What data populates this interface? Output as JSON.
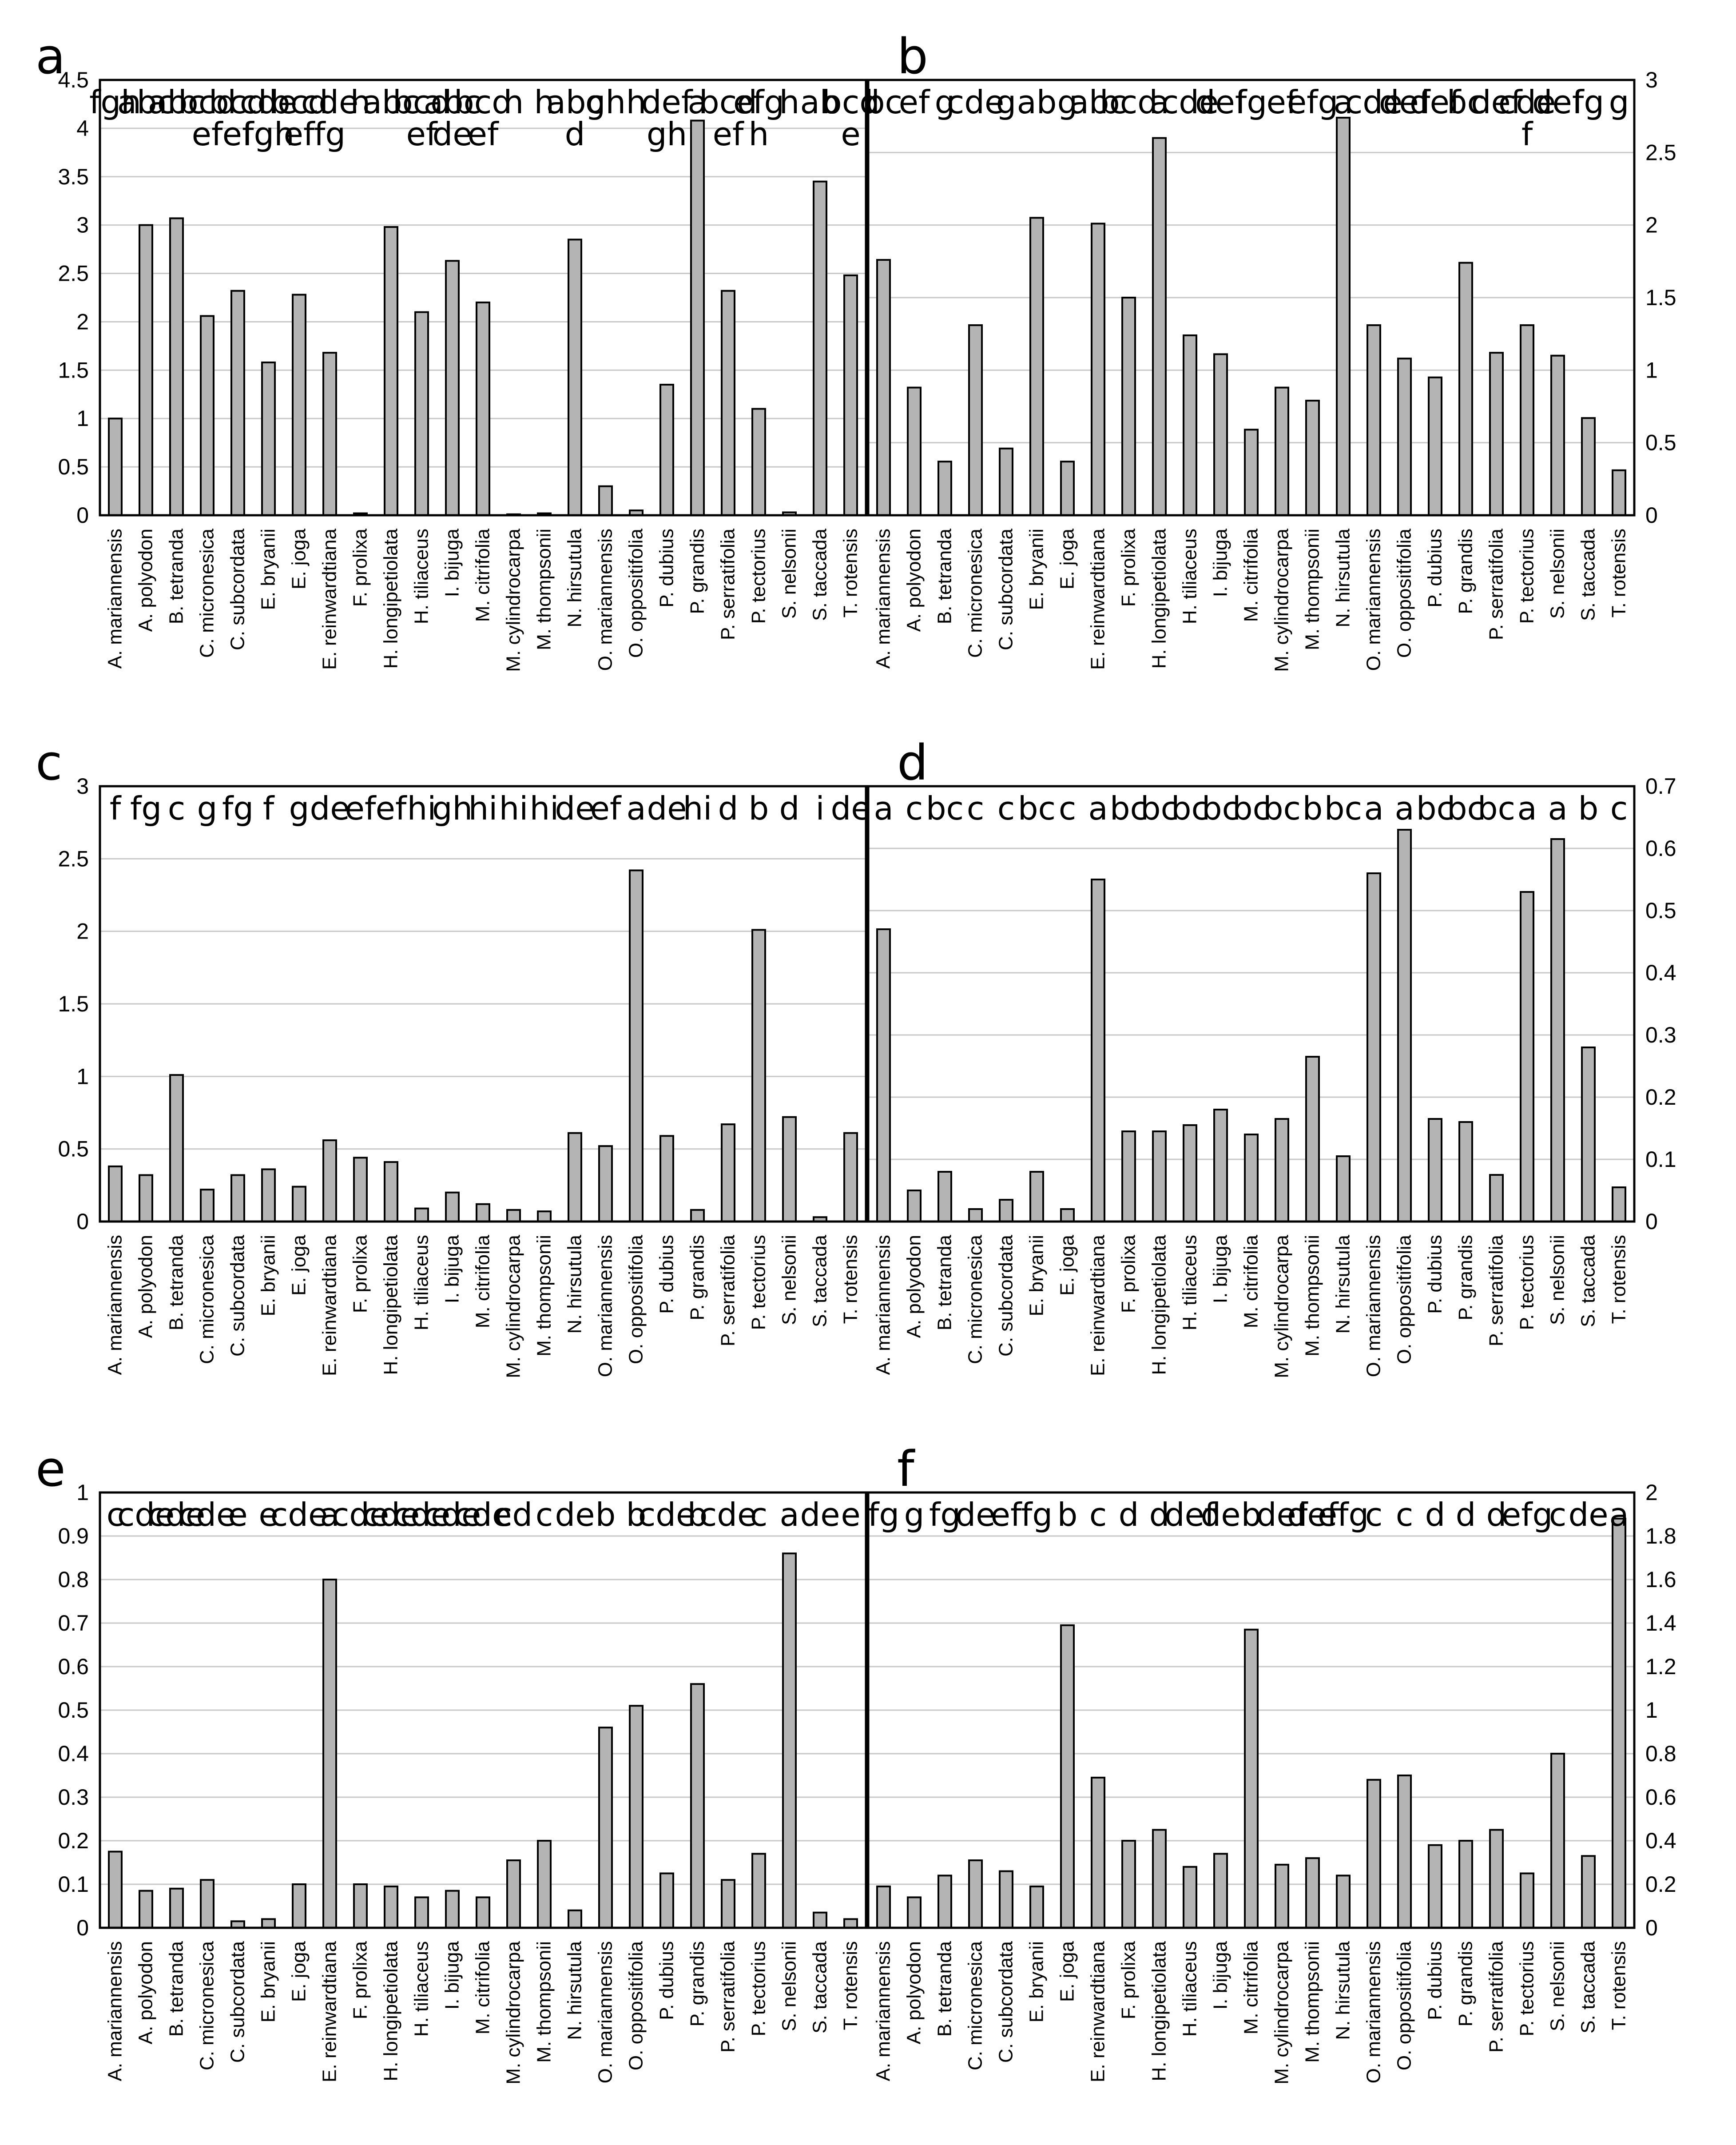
{
  "chart_data": [
    {
      "type": "bar",
      "panel": "a",
      "ylim": [
        0,
        4.5
      ],
      "yticks": [
        "0",
        "0.5",
        "1",
        "1.5",
        "2",
        "2.5",
        "3",
        "3.5",
        "4",
        "4.5"
      ],
      "categories": [
        "A. mariannensis",
        "A. polyodon",
        "B. tetranda",
        "C. micronesica",
        "C. subcordata",
        "E. bryanii",
        "E. joga",
        "E. reinwardtiana",
        "F. prolixa",
        "H. longipetiolata",
        "H. tiliaceus",
        "I. bijuga",
        "M. citrifolia",
        "M. cylindrocarpa",
        "M. thompsonii",
        "N. hirsutula",
        "O. mariannensis",
        "O. oppositifolia",
        "P. dubius",
        "P. grandis",
        "P. serratifolia",
        "P. tectorius",
        "S. nelsonii",
        "S. taccada",
        "T. rotensis"
      ],
      "values": [
        1.0,
        3.0,
        3.07,
        2.06,
        2.32,
        1.58,
        2.28,
        1.68,
        0.02,
        2.98,
        2.1,
        2.63,
        2.2,
        0.01,
        0.02,
        2.85,
        0.3,
        0.05,
        1.35,
        4.08,
        2.32,
        1.1,
        0.03,
        3.45,
        2.48
      ],
      "sig": [
        "fgh",
        "abc",
        "abc",
        "bcdef",
        "bcdef",
        "cdefgh",
        "bcdef",
        "cdefg",
        "h",
        "abc",
        "bcdef",
        "abcde",
        "bcdef",
        "h",
        "h",
        "abcd",
        "gh",
        "h",
        "defgh",
        "a",
        "bcdef",
        "efgh",
        "h",
        "ab",
        "bcde"
      ],
      "grid": true
    },
    {
      "type": "bar",
      "panel": "b",
      "ylim": [
        0,
        3
      ],
      "yticks": [
        "0",
        "0.5",
        "1",
        "1.5",
        "2",
        "2.5",
        "3"
      ],
      "categories": [
        "A. mariannensis",
        "A. polyodon",
        "B. tetranda",
        "C. micronesica",
        "C. subcordata",
        "E. bryanii",
        "E. joga",
        "E. reinwardtiana",
        "F. prolixa",
        "H. longipetiolata",
        "H. tiliaceus",
        "I. bijuga",
        "M. citrifolia",
        "M. cylindrocarpa",
        "M. thompsonii",
        "N. hirsutula",
        "O. mariannensis",
        "O. oppositifolia",
        "P. dubius",
        "P. grandis",
        "P. serratifolia",
        "P. tectorius",
        "S. nelsonii",
        "S. taccada",
        "T. rotensis"
      ],
      "values": [
        1.76,
        0.88,
        0.37,
        1.31,
        0.46,
        2.05,
        0.37,
        2.01,
        1.5,
        2.6,
        1.24,
        1.11,
        0.59,
        0.88,
        0.79,
        2.74,
        1.31,
        1.08,
        0.95,
        1.74,
        1.12,
        1.31,
        1.1,
        0.67,
        0.31
      ],
      "sig": [
        "bc",
        "ef",
        "g",
        "cde",
        "g",
        "ab",
        "g",
        "abc",
        "bcd",
        "a",
        "cde",
        "def",
        "fg",
        "ef",
        "efg",
        "a",
        "cde",
        "def",
        "def",
        "bc",
        "def",
        "cdef",
        "def",
        "fg",
        "g"
      ],
      "grid": true
    },
    {
      "type": "bar",
      "panel": "c",
      "ylim": [
        0,
        3
      ],
      "yticks": [
        "0",
        "0.5",
        "1",
        "1.5",
        "2",
        "2.5",
        "3"
      ],
      "categories": [
        "A. mariannensis",
        "A. polyodon",
        "B. tetranda",
        "C. micronesica",
        "C. subcordata",
        "E. bryanii",
        "E. joga",
        "E. reinwardtiana",
        "F. prolixa",
        "H. longipetiolata",
        "H. tiliaceus",
        "I. bijuga",
        "M. citrifolia",
        "M. cylindrocarpa",
        "M. thompsonii",
        "N. hirsutula",
        "O. mariannensis",
        "O. oppositifolia",
        "P. dubius",
        "P. grandis",
        "P. serratifolia",
        "P. tectorius",
        "S. nelsonii",
        "S. taccada",
        "T. rotensis"
      ],
      "values": [
        0.38,
        0.32,
        1.01,
        0.22,
        0.32,
        0.36,
        0.24,
        0.56,
        0.44,
        0.41,
        0.09,
        0.2,
        0.12,
        0.08,
        0.07,
        0.61,
        0.52,
        2.42,
        0.59,
        0.08,
        0.67,
        2.01,
        0.72,
        0.03,
        0.61
      ],
      "sig": [
        "f",
        "fg",
        "c",
        "g",
        "fg",
        "f",
        "g",
        "de",
        "ef",
        "ef",
        "hi",
        "gh",
        "hi",
        "hi",
        "hi",
        "de",
        "ef",
        "a",
        "de",
        "hi",
        "d",
        "b",
        "d",
        "i",
        "de"
      ],
      "grid": true
    },
    {
      "type": "bar",
      "panel": "d",
      "ylim": [
        0,
        0.7
      ],
      "yticks": [
        "0",
        "0.1",
        "0.2",
        "0.3",
        "0.4",
        "0.5",
        "0.6",
        "0.7"
      ],
      "categories": [
        "A. mariannensis",
        "A. polyodon",
        "B. tetranda",
        "C. micronesica",
        "C. subcordata",
        "E. bryanii",
        "E. joga",
        "E. reinwardtiana",
        "F. prolixa",
        "H. longipetiolata",
        "H. tiliaceus",
        "I. bijuga",
        "M. citrifolia",
        "M. cylindrocarpa",
        "M. thompsonii",
        "N. hirsutula",
        "O. mariannensis",
        "O. oppositifolia",
        "P. dubius",
        "P. grandis",
        "P. serratifolia",
        "P. tectorius",
        "S. nelsonii",
        "S. taccada",
        "T. rotensis"
      ],
      "values": [
        0.47,
        0.05,
        0.08,
        0.02,
        0.035,
        0.08,
        0.02,
        0.55,
        0.145,
        0.145,
        0.155,
        0.18,
        0.14,
        0.165,
        0.265,
        0.105,
        0.56,
        0.63,
        0.165,
        0.16,
        0.075,
        0.53,
        0.615,
        0.28,
        0.055
      ],
      "sig": [
        "a",
        "c",
        "bc",
        "c",
        "c",
        "bc",
        "c",
        "a",
        "bc",
        "bc",
        "bc",
        "bc",
        "bc",
        "bc",
        "b",
        "bc",
        "a",
        "a",
        "bc",
        "bc",
        "bc",
        "a",
        "a",
        "b",
        "c"
      ],
      "grid": true
    },
    {
      "type": "bar",
      "panel": "e",
      "ylim": [
        0,
        1
      ],
      "yticks": [
        "0",
        "0.1",
        "0.2",
        "0.3",
        "0.4",
        "0.5",
        "0.6",
        "0.7",
        "0.8",
        "0.9",
        "1"
      ],
      "categories": [
        "A. mariannensis",
        "A. polyodon",
        "B. tetranda",
        "C. micronesica",
        "C. subcordata",
        "E. bryanii",
        "E. joga",
        "E. reinwardtiana",
        "F. prolixa",
        "H. longipetiolata",
        "H. tiliaceus",
        "I. bijuga",
        "M. citrifolia",
        "M. cylindrocarpa",
        "M. thompsonii",
        "N. hirsutula",
        "O. mariannensis",
        "O. oppositifolia",
        "P. dubius",
        "P. grandis",
        "P. serratifolia",
        "P. tectorius",
        "S. nelsonii",
        "S. taccada",
        "T. rotensis"
      ],
      "values": [
        0.175,
        0.085,
        0.09,
        0.11,
        0.015,
        0.02,
        0.1,
        0.8,
        0.1,
        0.095,
        0.07,
        0.085,
        0.07,
        0.155,
        0.2,
        0.04,
        0.46,
        0.51,
        0.125,
        0.56,
        0.11,
        0.17,
        0.86,
        0.035,
        0.02
      ],
      "sig": [
        "c",
        "cde",
        "cde",
        "cde",
        "e",
        "e",
        "cde",
        "a",
        "cde",
        "cde",
        "cde",
        "cde",
        "cde",
        "cd",
        "c",
        "de",
        "b",
        "b",
        "cde",
        "b",
        "cde",
        "c",
        "a",
        "de",
        "e"
      ],
      "grid": true
    },
    {
      "type": "bar",
      "panel": "f",
      "ylim": [
        0,
        2
      ],
      "yticks": [
        "0",
        "0.2",
        "0.4",
        "0.6",
        "0.8",
        "1",
        "1.2",
        "1.4",
        "1.6",
        "1.8",
        "2"
      ],
      "categories": [
        "A. mariannensis",
        "A. polyodon",
        "B. tetranda",
        "C. micronesica",
        "C. subcordata",
        "E. bryanii",
        "E. joga",
        "E. reinwardtiana",
        "F. prolixa",
        "H. longipetiolata",
        "H. tiliaceus",
        "I. bijuga",
        "M. citrifolia",
        "M. cylindrocarpa",
        "M. thompsonii",
        "N. hirsutula",
        "O. mariannensis",
        "O. oppositifolia",
        "P. dubius",
        "P. grandis",
        "P. serratifolia",
        "P. tectorius",
        "S. nelsonii",
        "S. taccada",
        "T. rotensis"
      ],
      "values": [
        0.19,
        0.14,
        0.24,
        0.31,
        0.26,
        0.19,
        1.39,
        0.69,
        0.4,
        0.45,
        0.28,
        0.34,
        1.37,
        0.29,
        0.32,
        0.24,
        0.68,
        0.7,
        0.38,
        0.4,
        0.45,
        0.25,
        0.8,
        0.33,
        1.88
      ],
      "sig": [
        "fg",
        "g",
        "fg",
        "de",
        "ef",
        "fg",
        "b",
        "c",
        "d",
        "d",
        "def",
        "de",
        "b",
        "def",
        "def",
        "efg",
        "c",
        "c",
        "d",
        "d",
        "d",
        "efg",
        "c",
        "de",
        "a"
      ],
      "grid": true
    }
  ]
}
